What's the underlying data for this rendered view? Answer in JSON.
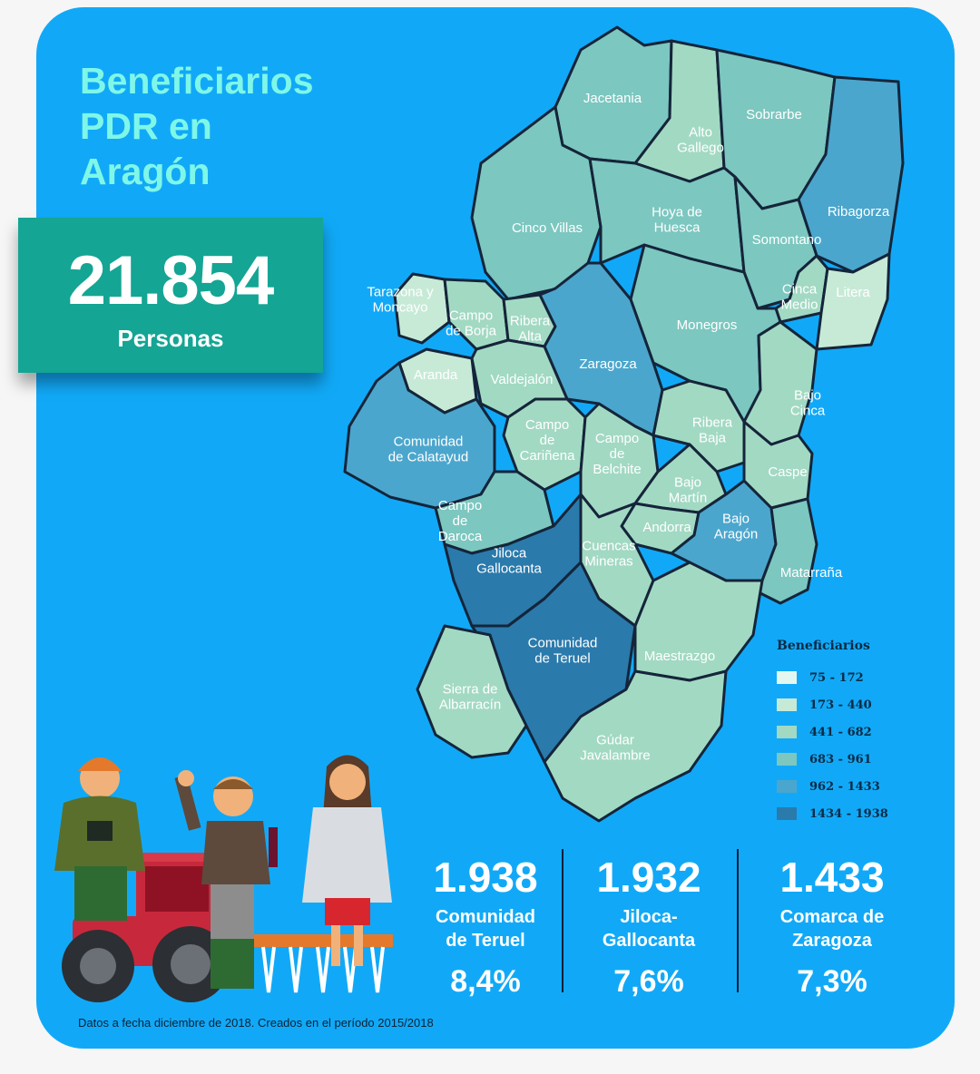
{
  "title": [
    "Beneficiarios",
    "PDR en",
    "Aragón"
  ],
  "total": {
    "value": "21.854",
    "unit": "Personas"
  },
  "legend": {
    "title": "Beneficiarios",
    "ranges": [
      {
        "label": "75 - 172",
        "color": "#e3f7f1"
      },
      {
        "label": "173 - 440",
        "color": "#c7ead7"
      },
      {
        "label": "441 - 682",
        "color": "#a2d9c3"
      },
      {
        "label": "683 - 961",
        "color": "#7cc7c0"
      },
      {
        "label": "962 - 1433",
        "color": "#4ba6cd"
      },
      {
        "label": "1434 - 1938",
        "color": "#2a7aac"
      }
    ]
  },
  "regions": [
    {
      "name": "Jacetania",
      "lines": [
        "Jacetania"
      ],
      "color": "#7cc7c0"
    },
    {
      "name": "Alto Gallego",
      "lines": [
        "Alto",
        "Gallego"
      ],
      "color": "#a2d9c3"
    },
    {
      "name": "Sobrarbe",
      "lines": [
        "Sobrarbe"
      ],
      "color": "#7cc7c0"
    },
    {
      "name": "Ribagorza",
      "lines": [
        "Ribagorza"
      ],
      "color": "#4ba6cd"
    },
    {
      "name": "Cinco Villas",
      "lines": [
        "Cinco Villas"
      ],
      "color": "#7cc7c0"
    },
    {
      "name": "Hoya de Huesca",
      "lines": [
        "Hoya de",
        "Huesca"
      ],
      "color": "#7cc7c0"
    },
    {
      "name": "Somontano",
      "lines": [
        "Somontano"
      ],
      "color": "#7cc7c0"
    },
    {
      "name": "Tarazona y Moncayo",
      "lines": [
        "Tarazona y",
        "Moncayo"
      ],
      "color": "#c7ead7"
    },
    {
      "name": "Campo de Borja",
      "lines": [
        "Campo",
        "de Borja"
      ],
      "color": "#a2d9c3"
    },
    {
      "name": "Ribera Alta",
      "lines": [
        "Ribera",
        "Alta"
      ],
      "color": "#a2d9c3"
    },
    {
      "name": "Cinca Medio",
      "lines": [
        "Cinca",
        "Medio"
      ],
      "color": "#a2d9c3"
    },
    {
      "name": "Litera",
      "lines": [
        "Litera"
      ],
      "color": "#c7ead7"
    },
    {
      "name": "Monegros",
      "lines": [
        "Monegros"
      ],
      "color": "#7cc7c0"
    },
    {
      "name": "Zaragoza",
      "lines": [
        "Zaragoza"
      ],
      "color": "#4ba6cd"
    },
    {
      "name": "Aranda",
      "lines": [
        "Aranda"
      ],
      "color": "#c7ead7"
    },
    {
      "name": "Valdejalón",
      "lines": [
        "Valdejalón"
      ],
      "color": "#a2d9c3"
    },
    {
      "name": "Bajo Cinca",
      "lines": [
        "Bajo",
        "Cinca"
      ],
      "color": "#a2d9c3"
    },
    {
      "name": "Ribera Baja",
      "lines": [
        "Ribera",
        "Baja"
      ],
      "color": "#a2d9c3"
    },
    {
      "name": "Comunidad de Calatayud",
      "lines": [
        "Comunidad",
        "de Calatayud"
      ],
      "color": "#4ba6cd"
    },
    {
      "name": "Campo de Cariñena",
      "lines": [
        "Campo",
        "de",
        "Cariñena"
      ],
      "color": "#a2d9c3"
    },
    {
      "name": "Campo de Belchite",
      "lines": [
        "Campo",
        "de",
        "Belchite"
      ],
      "color": "#a2d9c3"
    },
    {
      "name": "Caspe",
      "lines": [
        "Caspe"
      ],
      "color": "#a2d9c3"
    },
    {
      "name": "Bajo Martín",
      "lines": [
        "Bajo",
        "Martín"
      ],
      "color": "#a2d9c3"
    },
    {
      "name": "Campo de Daroca",
      "lines": [
        "Campo",
        "de",
        "Daroca"
      ],
      "color": "#7cc7c0"
    },
    {
      "name": "Andorra",
      "lines": [
        "Andorra"
      ],
      "color": "#a2d9c3"
    },
    {
      "name": "Bajo Aragón",
      "lines": [
        "Bajo",
        "Aragón"
      ],
      "color": "#4ba6cd"
    },
    {
      "name": "Jiloca Gallocanta",
      "lines": [
        "Jiloca",
        "Gallocanta"
      ],
      "color": "#2a7aac"
    },
    {
      "name": "Cuencas Mineras",
      "lines": [
        "Cuencas",
        "Mineras"
      ],
      "color": "#a2d9c3"
    },
    {
      "name": "Matarraña",
      "lines": [
        "Matarraña"
      ],
      "color": "#7cc7c0"
    },
    {
      "name": "Comunidad de Teruel",
      "lines": [
        "Comunidad",
        "de Teruel"
      ],
      "color": "#2a7aac"
    },
    {
      "name": "Maestrazgo",
      "lines": [
        "Maestrazgo"
      ],
      "color": "#a2d9c3"
    },
    {
      "name": "Sierra de Albarracín",
      "lines": [
        "Sierra de",
        "Albarracín"
      ],
      "color": "#a2d9c3"
    },
    {
      "name": "Gúdar Javalambre",
      "lines": [
        "Gúdar",
        "Javalambre"
      ],
      "color": "#a2d9c3"
    }
  ],
  "stats": [
    {
      "value": "1.938",
      "name_lines": [
        "Comunidad",
        "de Teruel"
      ],
      "percent": "8,4%"
    },
    {
      "value": "1.932",
      "name_lines": [
        "Jiloca-",
        "Gallocanta"
      ],
      "percent": "7,6%"
    },
    {
      "value": "1.433",
      "name_lines": [
        "Comarca de",
        "Zaragoza"
      ],
      "percent": "7,3%"
    }
  ],
  "footnote": "Datos a fecha diciembre de 2018. Creados en el período 2015/2018"
}
